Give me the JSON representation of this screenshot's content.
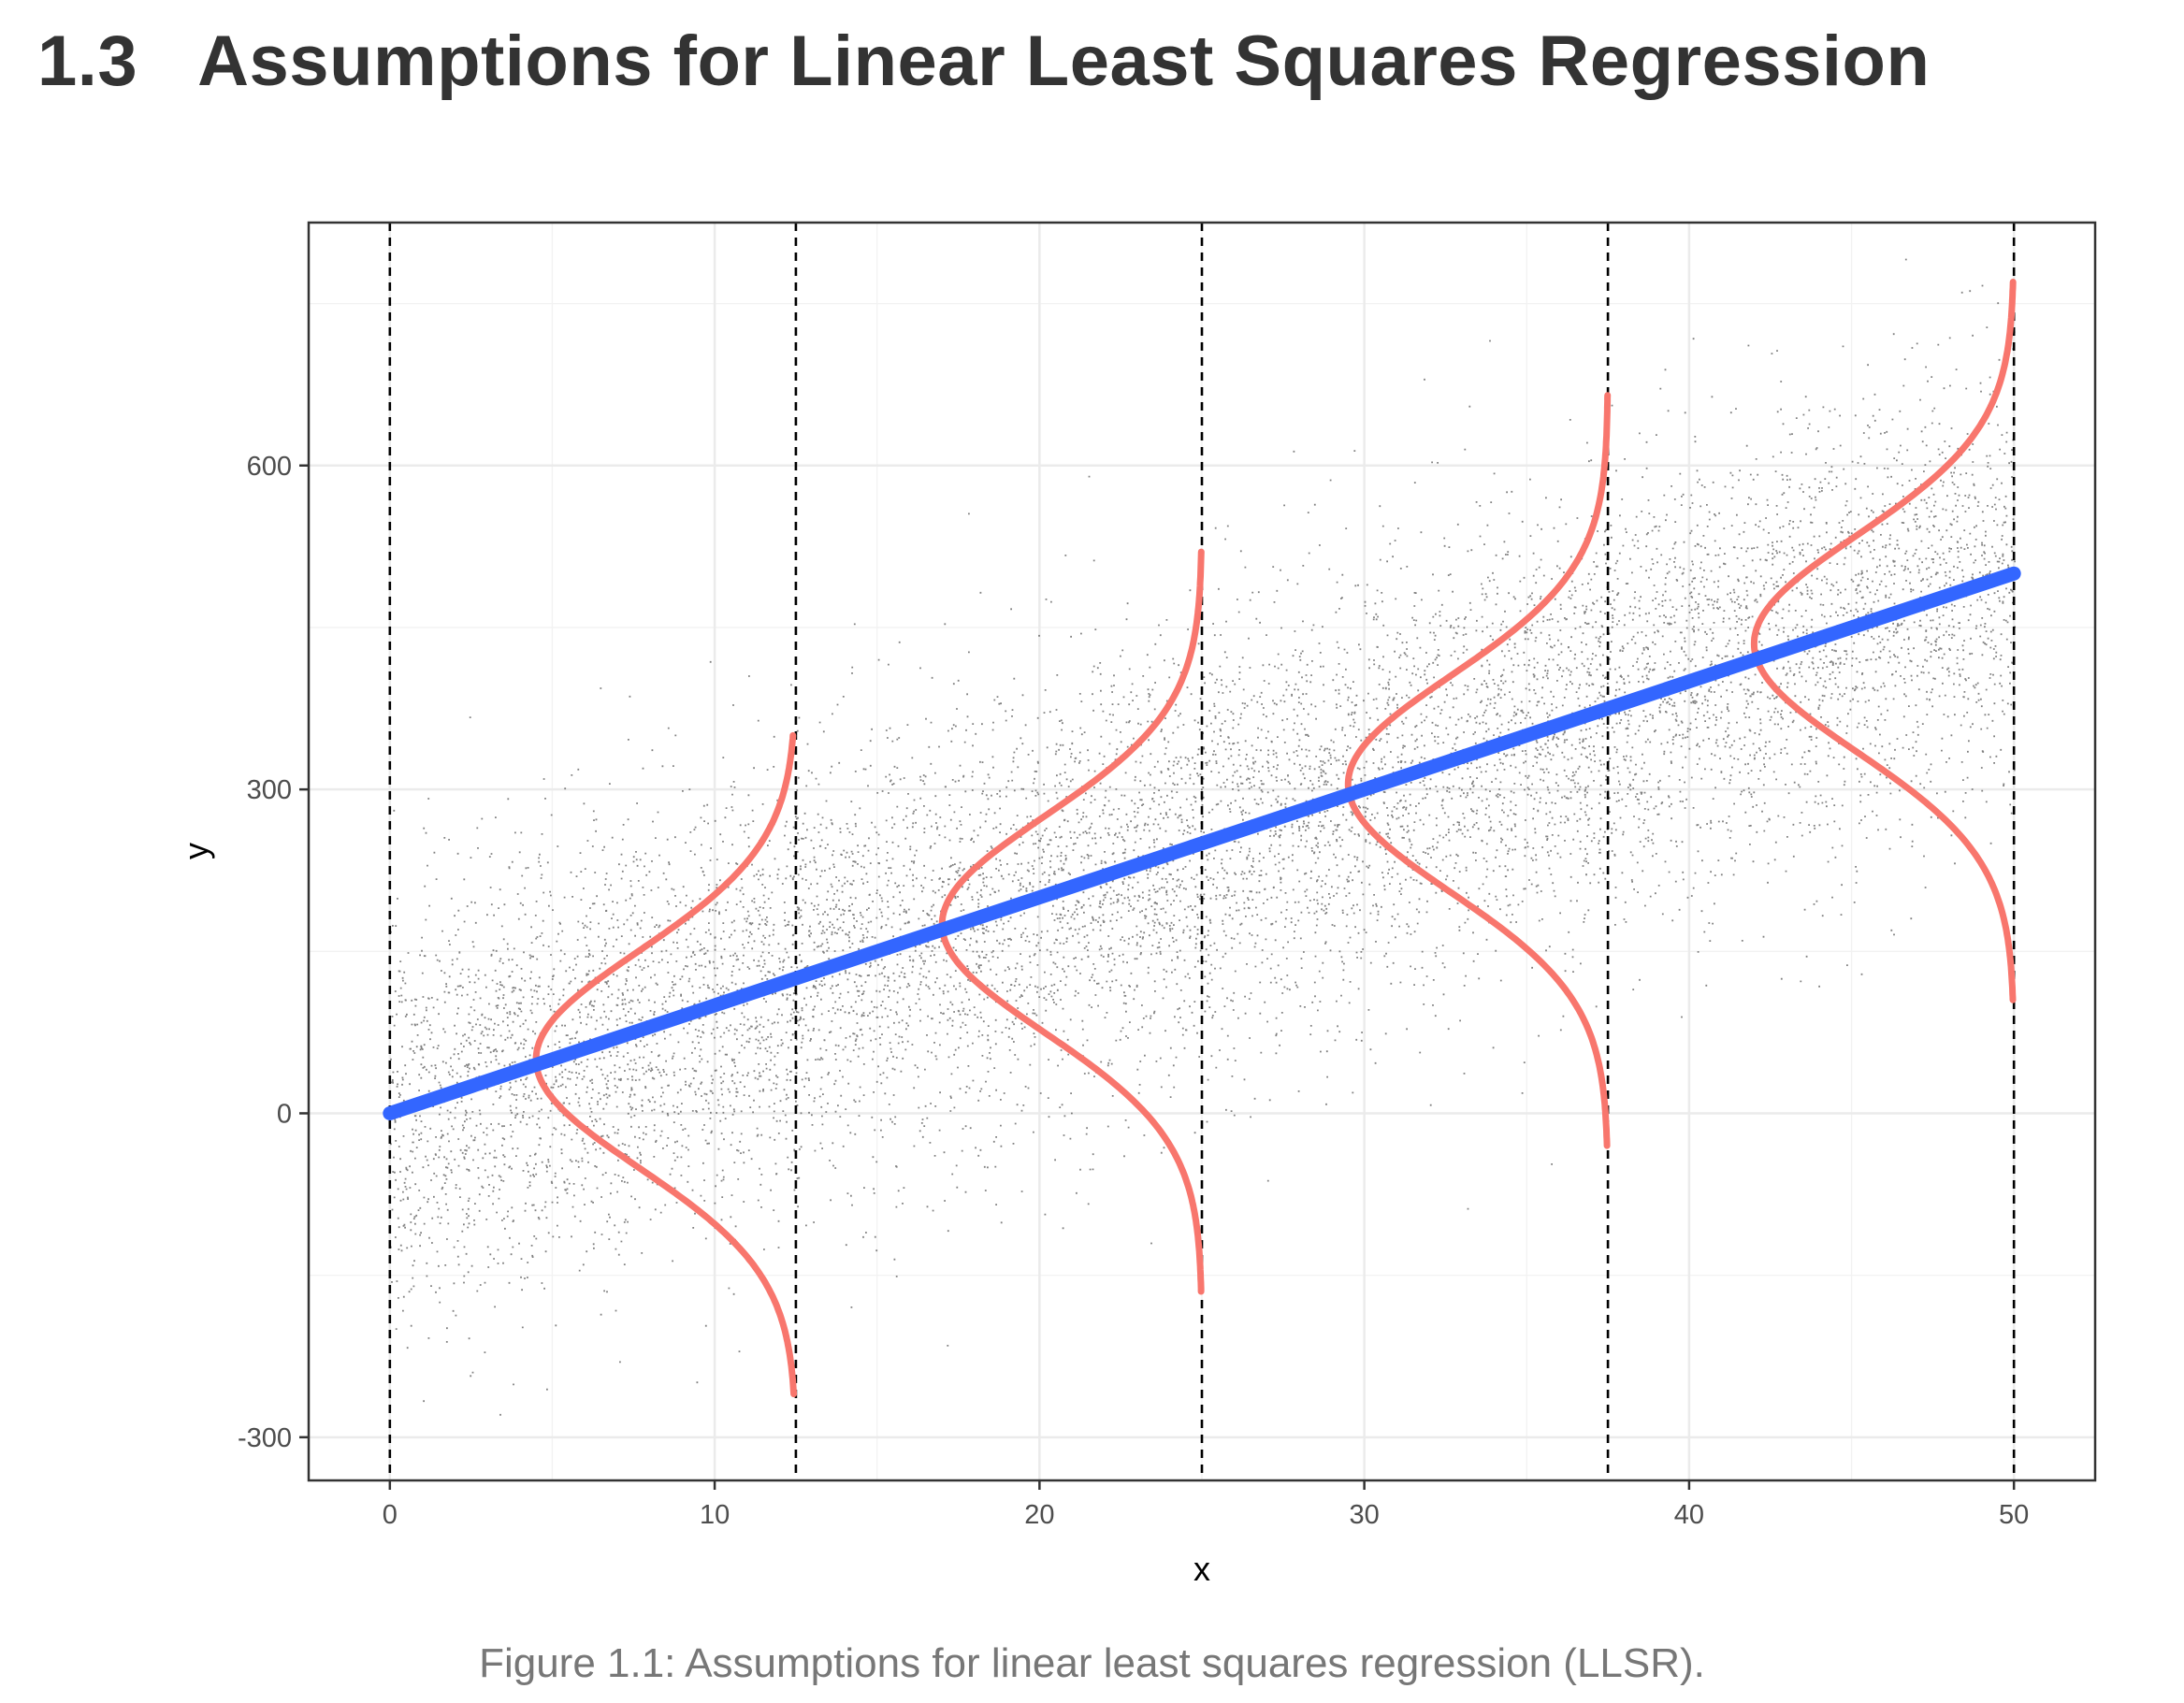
{
  "section": {
    "number": "1.3",
    "title": "Assumptions for Linear Least Squares Regression"
  },
  "caption": "Figure 1.1: Assumptions for linear least squares regression (LLSR).",
  "chart_data": {
    "type": "scatter",
    "title": "",
    "xlabel": "x",
    "ylabel": "y",
    "xlim": [
      -2.5,
      52.5
    ],
    "ylim": [
      -340,
      825
    ],
    "x_ticks": [
      0,
      10,
      20,
      30,
      40,
      50
    ],
    "y_ticks": [
      -300,
      0,
      300,
      600
    ],
    "x_tick_labels": [
      "0",
      "10",
      "20",
      "30",
      "40",
      "50"
    ],
    "y_tick_labels": [
      "-300",
      "0",
      "300",
      "600"
    ],
    "grid": true,
    "theme": "bw",
    "scatter": {
      "description_of_distribution": "y = 10x + normal noise",
      "n_points": 10000,
      "x_range": [
        0,
        50
      ],
      "noise_sd": 100,
      "color": "#555555"
    },
    "fit_line": {
      "intercept": 0,
      "slope": 10,
      "x": [
        0,
        50
      ],
      "y": [
        0,
        500
      ],
      "color": "#3366FF"
    },
    "vertical_lines": {
      "x": [
        0,
        12.5,
        25,
        37.5,
        50
      ],
      "style": "dashed",
      "color": "#000000"
    },
    "normal_curves": {
      "color": "#F8766D",
      "sd": 100,
      "curves": [
        {
          "x_base": 12.5,
          "mean": 50,
          "y_range": [
            -260,
            350
          ],
          "peak_x": 4.5
        },
        {
          "x_base": 25,
          "mean": 175,
          "y_range": [
            -165,
            520
          ],
          "peak_x": 17.0
        },
        {
          "x_base": 37.5,
          "mean": 305,
          "y_range": [
            -30,
            665
          ],
          "peak_x": 29.5
        },
        {
          "x_base": 50,
          "mean": 435,
          "y_range": [
            105,
            770
          ],
          "peak_x": 42.0
        }
      ]
    }
  }
}
